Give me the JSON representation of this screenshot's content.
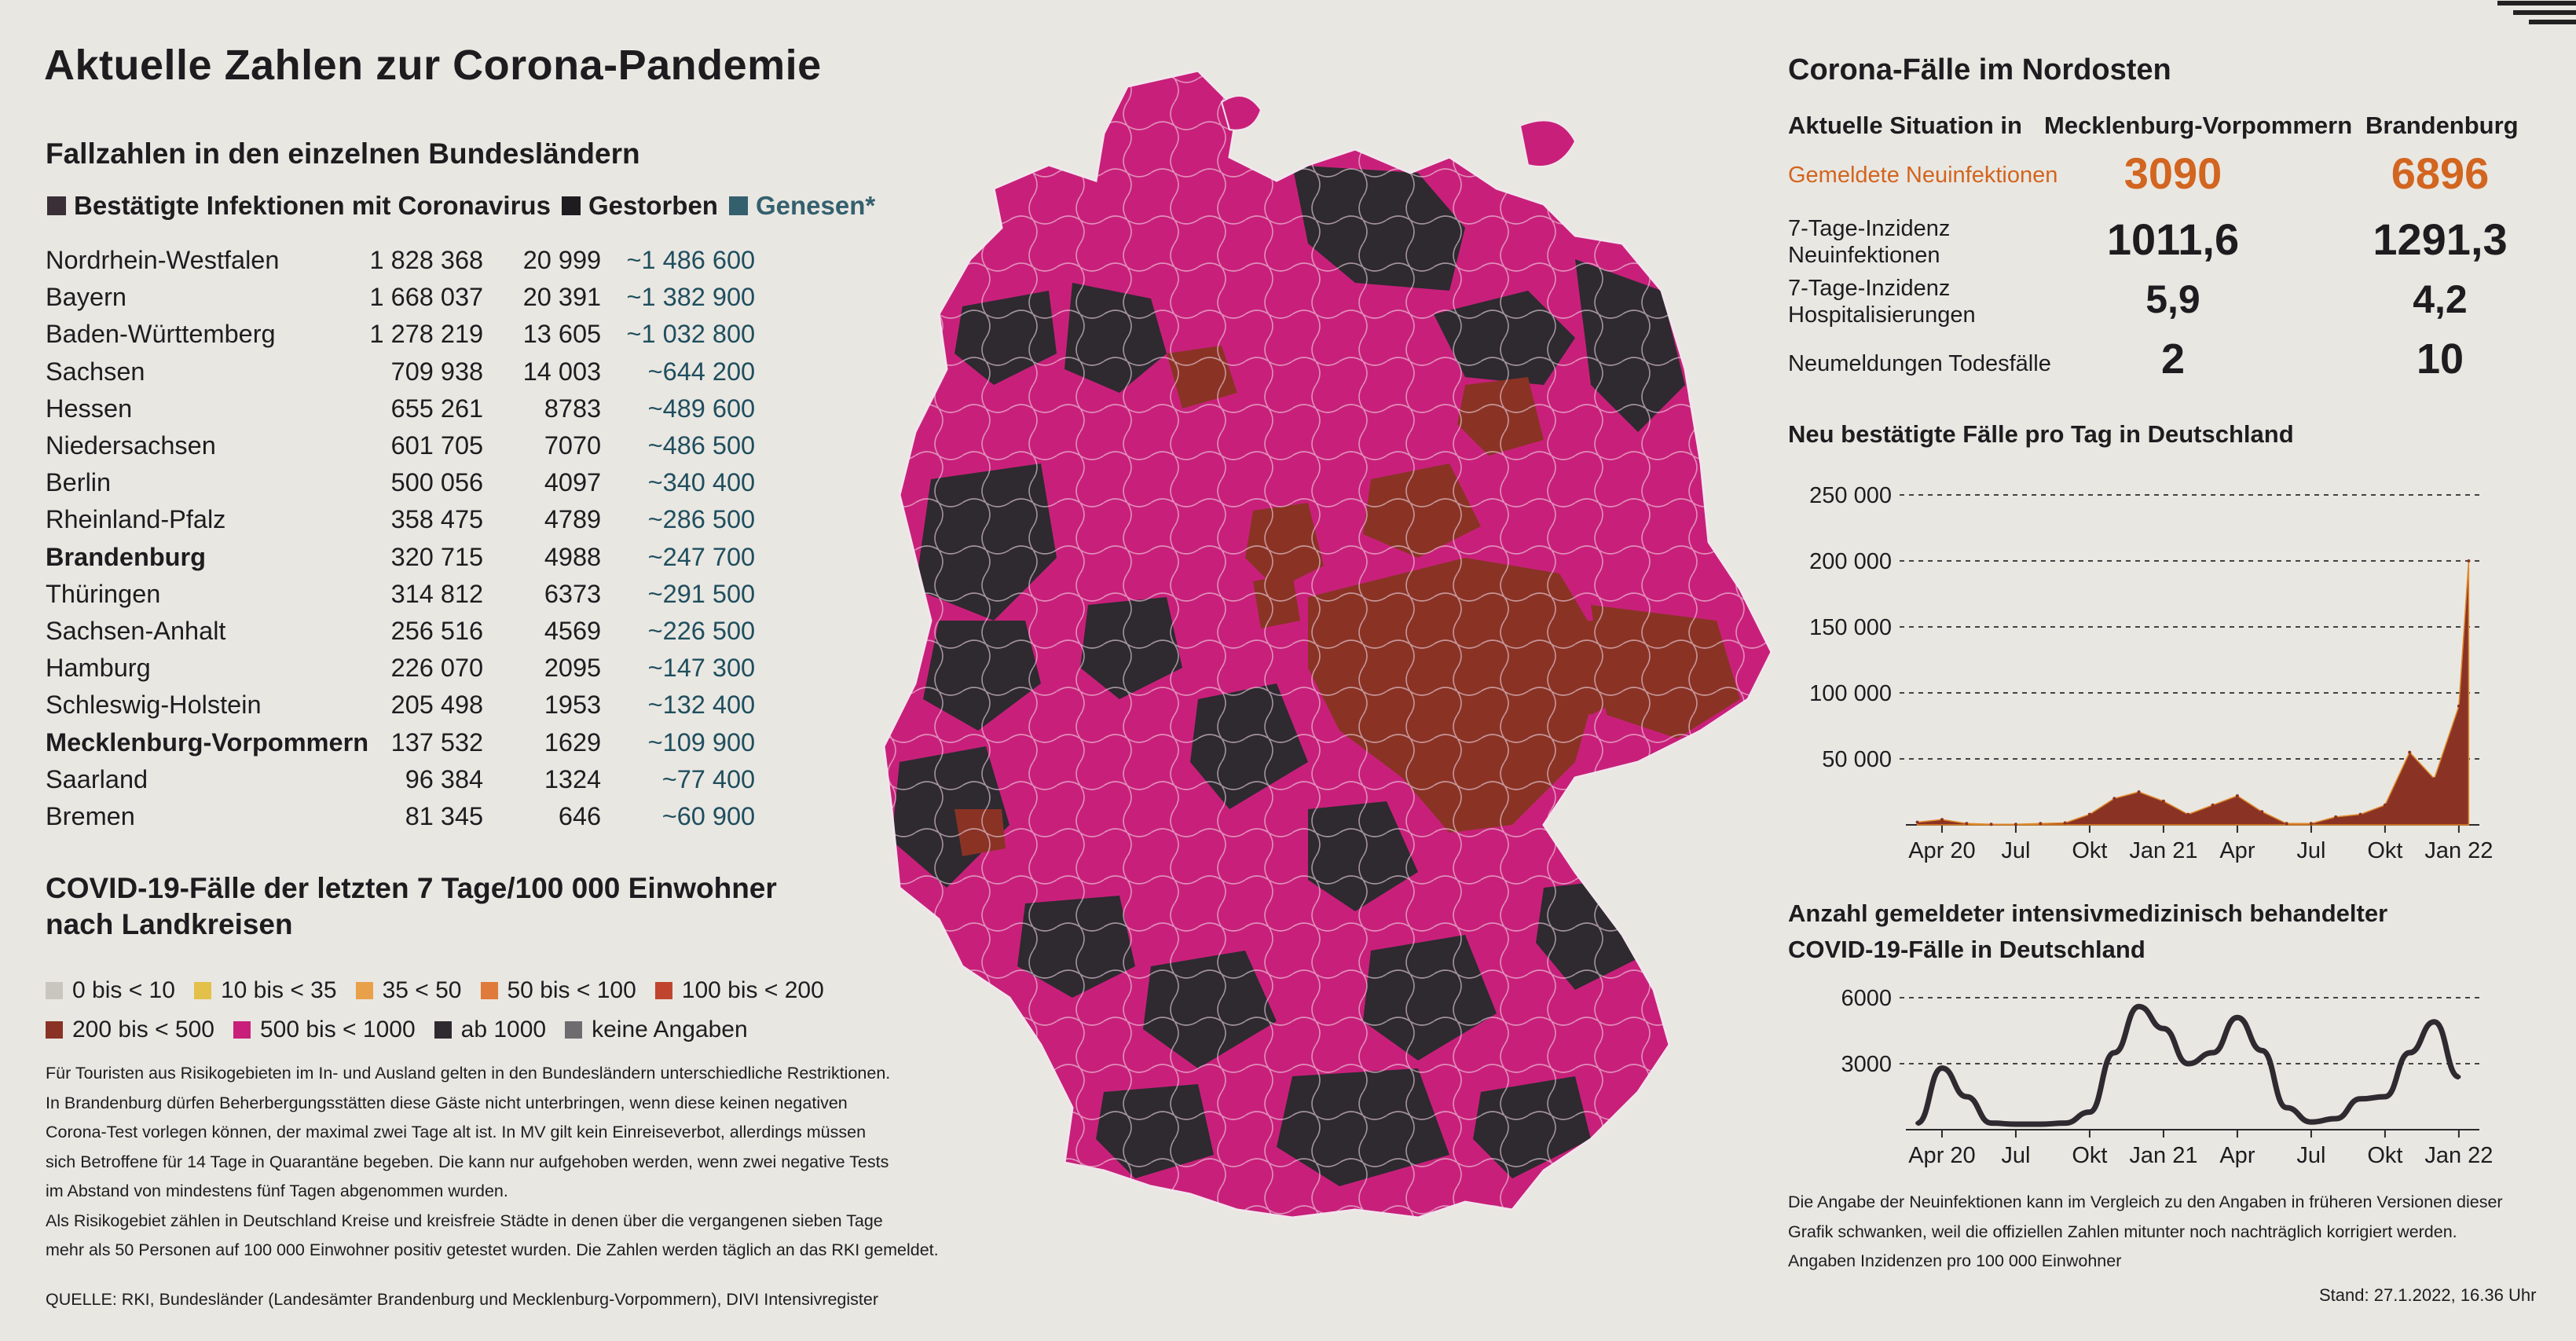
{
  "title": "Aktuelle Zahlen zur Corona-Pandemie",
  "states_section": {
    "heading": "Fallzahlen in den einzelnen Bundesländern",
    "legend": [
      {
        "label": "Bestätigte Infektionen mit Coronavirus",
        "color": "#3a2f37"
      },
      {
        "label": "Gestorben",
        "color": "#1f1c20"
      },
      {
        "label": "Genesen*",
        "color": "#34606e"
      }
    ],
    "rows": [
      {
        "name": "Nordrhein-Westfalen",
        "infected": "1 828 368",
        "deaths": "20 999",
        "recovered": "~1 486 600",
        "bold": false
      },
      {
        "name": "Bayern",
        "infected": "1 668 037",
        "deaths": "20 391",
        "recovered": "~1 382 900",
        "bold": false
      },
      {
        "name": "Baden-Württemberg",
        "infected": "1 278 219",
        "deaths": "13 605",
        "recovered": "~1 032 800",
        "bold": false
      },
      {
        "name": "Sachsen",
        "infected": "709 938",
        "deaths": "14 003",
        "recovered": "~644 200",
        "bold": false
      },
      {
        "name": "Hessen",
        "infected": "655 261",
        "deaths": "8783",
        "recovered": "~489 600",
        "bold": false
      },
      {
        "name": "Niedersachsen",
        "infected": "601 705",
        "deaths": "7070",
        "recovered": "~486 500",
        "bold": false
      },
      {
        "name": "Berlin",
        "infected": "500 056",
        "deaths": "4097",
        "recovered": "~340 400",
        "bold": false
      },
      {
        "name": "Rheinland-Pfalz",
        "infected": "358 475",
        "deaths": "4789",
        "recovered": "~286 500",
        "bold": false
      },
      {
        "name": "Brandenburg",
        "infected": "320 715",
        "deaths": "4988",
        "recovered": "~247 700",
        "bold": true
      },
      {
        "name": "Thüringen",
        "infected": "314 812",
        "deaths": "6373",
        "recovered": "~291 500",
        "bold": false
      },
      {
        "name": "Sachsen-Anhalt",
        "infected": "256 516",
        "deaths": "4569",
        "recovered": "~226 500",
        "bold": false
      },
      {
        "name": "Hamburg",
        "infected": "226 070",
        "deaths": "2095",
        "recovered": "~147 300",
        "bold": false
      },
      {
        "name": "Schleswig-Holstein",
        "infected": "205 498",
        "deaths": "1953",
        "recovered": "~132 400",
        "bold": false
      },
      {
        "name": "Mecklenburg-Vorpommern",
        "infected": "137 532",
        "deaths": "1629",
        "recovered": "~109 900",
        "bold": true
      },
      {
        "name": "Saarland",
        "infected": "96 384",
        "deaths": "1324",
        "recovered": "~77 400",
        "bold": false
      },
      {
        "name": "Bremen",
        "infected": "81 345",
        "deaths": "646",
        "recovered": "~60 900",
        "bold": false
      }
    ]
  },
  "incidence_section": {
    "heading": "COVID-19-Fälle der letzten 7 Tage/100 000 Einwohner\nnach Landkreisen",
    "legend_row1": [
      {
        "label": "0 bis < 10",
        "color": "#c9c6c0"
      },
      {
        "label": "10 bis < 35",
        "color": "#e3c04a"
      },
      {
        "label": "35 < 50",
        "color": "#e8a04a"
      },
      {
        "label": "50 bis < 100",
        "color": "#e07a3a"
      },
      {
        "label": "100 bis < 200",
        "color": "#c0452f"
      }
    ],
    "legend_row2": [
      {
        "label": "200 bis < 500",
        "color": "#8a3325"
      },
      {
        "label": "500  bis < 1000",
        "color": "#c8207a"
      },
      {
        "label": "ab 1000",
        "color": "#2e2a30"
      },
      {
        "label": "keine Angaben",
        "color": "#6e6c6e"
      }
    ],
    "note": "Für Touristen aus Risikogebieten im In- und Ausland gelten in den Bundesländern unterschiedliche Restriktionen.\nIn Brandenburg dürfen Beherbergungsstätten diese Gäste nicht unterbringen, wenn diese keinen negativen\nCorona-Test vorlegen können, der maximal zwei Tage alt ist. In MV gilt kein Einreiseverbot, allerdings müssen\nsich Betroffene für 14 Tage in Quarantäne begeben. Die kann nur aufgehoben werden, wenn zwei negative Tests\nim Abstand von mindestens fünf Tagen abgenommen wurden.\nAls Risikogebiet zählen in Deutschland Kreise und kreisfreie Städte in denen über die vergangenen sieben Tage\nmehr als 50 Personen auf 100 000 Einwohner positiv getestet wurden. Die Zahlen werden täglich an das RKI gemeldet.",
    "source": "QUELLE: RKI, Bundesländer (Landesämter Brandenburg und Mecklenburg-Vorpommern), DIVI Intensivregister"
  },
  "northeast": {
    "title": "Corona-Fälle im Nordosten",
    "col_label": "Aktuelle Situation in",
    "col_mv": "Mecklenburg-Vorpommern",
    "col_bb": "Brandenburg",
    "rows": [
      {
        "label": "Gemeldete Neuinfektionen",
        "mv": "3090",
        "bb": "6896"
      },
      {
        "label": "7-Tage-Inzidenz\nNeuinfektionen",
        "mv": "1011,6",
        "bb": "1291,3"
      },
      {
        "label": "7-Tage-Inzidenz\nHospitalisierungen",
        "mv": "5,9",
        "bb": "4,2"
      },
      {
        "label": "Neumeldungen Todesfälle",
        "mv": "2",
        "bb": "10"
      }
    ]
  },
  "chart_data": [
    {
      "type": "area",
      "title": "Neu bestätigte Fälle pro Tag in Deutschland",
      "x_ticks": [
        "Apr 20",
        "Jul",
        "Okt",
        "Jan 21",
        "Apr",
        "Jul",
        "Okt",
        "Jan 22"
      ],
      "y_ticks": [
        "250 000",
        "200 000",
        "150 000",
        "100 000",
        "50 000"
      ],
      "ylim": [
        0,
        250000
      ],
      "color": "#8a3325",
      "x": [
        "2020-03",
        "2020-04",
        "2020-05",
        "2020-06",
        "2020-07",
        "2020-08",
        "2020-09",
        "2020-10",
        "2020-11",
        "2020-12",
        "2021-01",
        "2021-02",
        "2021-03",
        "2021-04",
        "2021-05",
        "2021-06",
        "2021-07",
        "2021-08",
        "2021-09",
        "2021-10",
        "2021-11",
        "2021-12",
        "2022-01",
        "2022-01-27"
      ],
      "values": [
        2000,
        4000,
        1000,
        500,
        500,
        1000,
        1500,
        8000,
        20000,
        25000,
        18000,
        8000,
        15000,
        22000,
        10000,
        1000,
        1000,
        6000,
        8000,
        15000,
        55000,
        35000,
        90000,
        200000
      ]
    },
    {
      "type": "line",
      "title": "Anzahl gemeldeter intensivmedizinisch behandelter\nCOVID-19-Fälle in Deutschland",
      "x_ticks": [
        "Apr 20",
        "Jul",
        "Okt",
        "Jan 21",
        "Apr",
        "Jul",
        "Okt",
        "Jan 22"
      ],
      "y_ticks": [
        "6000",
        "3000"
      ],
      "ylim": [
        0,
        6000
      ],
      "color": "#2e2a30",
      "x": [
        "2020-03",
        "2020-04",
        "2020-05",
        "2020-06",
        "2020-07",
        "2020-08",
        "2020-09",
        "2020-10",
        "2020-11",
        "2020-12",
        "2021-01",
        "2021-02",
        "2021-03",
        "2021-04",
        "2021-05",
        "2021-06",
        "2021-07",
        "2021-08",
        "2021-09",
        "2021-10",
        "2021-11",
        "2021-12",
        "2022-01"
      ],
      "values": [
        300,
        2800,
        1500,
        300,
        250,
        250,
        300,
        800,
        3500,
        5600,
        4600,
        3000,
        3500,
        5100,
        3600,
        1000,
        350,
        500,
        1400,
        1500,
        3500,
        4900,
        2400
      ]
    }
  ],
  "footnote": "Die Angabe der Neuinfektionen kann im Vergleich zu den Angaben in früheren Versionen dieser\nGrafik schwanken, weil die offiziellen Zahlen mitunter noch nachträglich korrigiert werden.\nAngaben Inzidenzen pro 100 000 Einwohner",
  "stand": "Stand: 27.1.2022, 16.36 Uhr",
  "colors": {
    "magenta": "#c8207a",
    "dark": "#2e2a30",
    "brown": "#8a3325",
    "orange_text": "#d2651f"
  }
}
